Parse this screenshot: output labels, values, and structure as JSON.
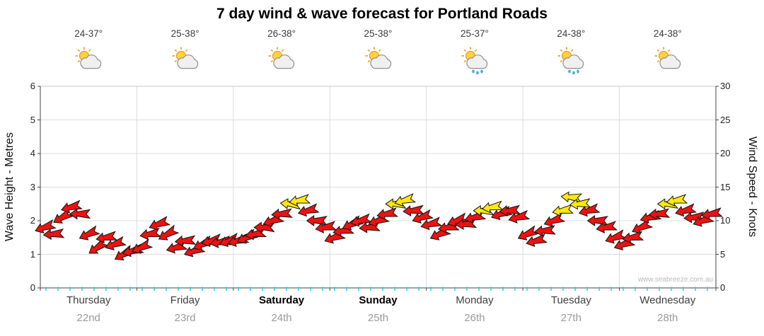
{
  "title": "7 day wind & wave forecast for Portland Roads",
  "watermark": "www.seabreeze.com.au",
  "axes": {
    "left": {
      "label": "Wave Height - Metres",
      "ticks": [
        0,
        1,
        2,
        3,
        4,
        5,
        6
      ],
      "range": [
        0,
        6
      ]
    },
    "right": {
      "label": "Wind Speed - Knots",
      "ticks": [
        0,
        5,
        10,
        15,
        20,
        25,
        30
      ],
      "range": [
        0,
        30
      ]
    }
  },
  "days": [
    {
      "name": "Thursday",
      "date": "22nd",
      "temp": "24-37°",
      "icon": "sun-cloud",
      "emphasis": false
    },
    {
      "name": "Friday",
      "date": "23rd",
      "temp": "25-38°",
      "icon": "sun-cloud",
      "emphasis": false
    },
    {
      "name": "Saturday",
      "date": "24th",
      "temp": "26-38°",
      "icon": "sun-cloud",
      "emphasis": true
    },
    {
      "name": "Sunday",
      "date": "25th",
      "temp": "25-38°",
      "icon": "sun-cloud",
      "emphasis": true
    },
    {
      "name": "Monday",
      "date": "26th",
      "temp": "25-37°",
      "icon": "sun-cloud-rain",
      "emphasis": false
    },
    {
      "name": "Tuesday",
      "date": "27th",
      "temp": "24-38°",
      "icon": "sun-cloud-rain",
      "emphasis": false
    },
    {
      "name": "Wednesday",
      "date": "28th",
      "temp": "24-38°",
      "icon": "sun-cloud",
      "emphasis": false
    }
  ],
  "chart_data": {
    "type": "wind-arrow-timeseries",
    "title": "7 day wind & wave forecast for Portland Roads",
    "x_categories": [
      "Thursday 22nd",
      "Friday 23rd",
      "Saturday 24th",
      "Sunday 25th",
      "Monday 26th",
      "Tuesday 27th",
      "Wednesday 28th"
    ],
    "points_per_day": 11,
    "left_axis": {
      "label": "Wave Height - Metres",
      "range": [
        0,
        6
      ]
    },
    "right_axis": {
      "label": "Wind Speed - Knots",
      "range": [
        0,
        30
      ]
    },
    "wind": {
      "units": "knots",
      "knots": [
        9,
        8,
        10.5,
        12,
        11,
        8,
        6,
        7.5,
        6.5,
        5,
        5.5,
        6,
        8,
        9.5,
        8,
        6,
        7,
        5.5,
        6.5,
        7,
        6.8,
        7,
        7,
        7.5,
        8,
        9,
        10,
        11,
        12.5,
        13,
        11.5,
        10,
        9,
        7.5,
        8.5,
        9.5,
        10,
        9,
        10,
        11,
        12.5,
        13,
        11.5,
        10.5,
        9.5,
        8,
        9,
        10,
        9.5,
        10.5,
        11.5,
        12,
        11,
        11.5,
        10.5,
        8,
        7,
        8.5,
        10,
        11.5,
        13.5,
        12.5,
        11.5,
        10,
        9,
        7.5,
        6.5,
        7.5,
        9,
        10.5,
        11,
        12.5,
        13,
        11.5,
        10.5,
        10,
        11
      ],
      "dir_deg": [
        250,
        265,
        240,
        255,
        270,
        245,
        235,
        260,
        250,
        240,
        255,
        245,
        260,
        250,
        240,
        255,
        265,
        250,
        245,
        255,
        260,
        250,
        255,
        245,
        260,
        270,
        250,
        265,
        275,
        260,
        255,
        270,
        260,
        250,
        260,
        245,
        255,
        265,
        250,
        260,
        270,
        255,
        265,
        250,
        255,
        245,
        260,
        250,
        265,
        255,
        270,
        260,
        250,
        265,
        255,
        245,
        255,
        265,
        250,
        260,
        275,
        265,
        255,
        270,
        260,
        250,
        250,
        260,
        245,
        255,
        265,
        270,
        260,
        255,
        265,
        250,
        260
      ],
      "color_class": [
        "r",
        "r",
        "r",
        "r",
        "r",
        "r",
        "r",
        "r",
        "r",
        "r",
        "r",
        "r",
        "r",
        "r",
        "r",
        "r",
        "r",
        "r",
        "r",
        "r",
        "r",
        "r",
        "r",
        "r",
        "r",
        "r",
        "r",
        "r",
        "y",
        "y",
        "r",
        "r",
        "r",
        "r",
        "r",
        "r",
        "r",
        "r",
        "r",
        "r",
        "y",
        "y",
        "r",
        "r",
        "r",
        "r",
        "r",
        "r",
        "r",
        "r",
        "y",
        "y",
        "r",
        "r",
        "r",
        "r",
        "r",
        "r",
        "r",
        "y",
        "y",
        "y",
        "r",
        "r",
        "r",
        "r",
        "r",
        "r",
        "r",
        "r",
        "r",
        "y",
        "y",
        "r",
        "r",
        "r",
        "r"
      ]
    },
    "wave_height_m": {
      "units": "metres",
      "approx_constant": 0.1
    },
    "colors": {
      "red": "#ee1111",
      "yellow": "#ffe80a",
      "wave": "#2fd0d4",
      "grid": "#dcdcdc",
      "axis": "#444444"
    },
    "grid": true,
    "legend": "none"
  }
}
